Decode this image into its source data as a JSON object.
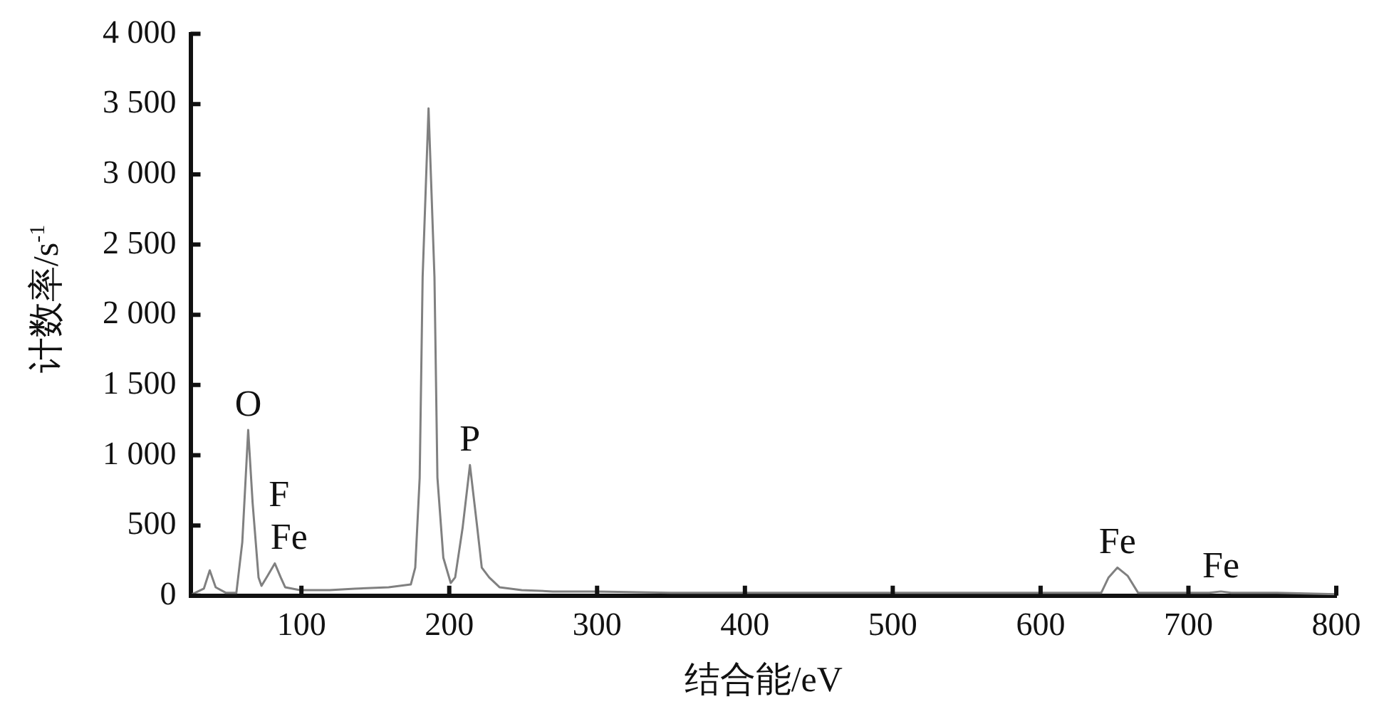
{
  "chart_data": {
    "type": "line",
    "xlabel": "结合能/eV",
    "ylabel": "计数率/s$^{-1}$",
    "x": [
      26,
      34,
      38,
      42,
      49,
      56,
      60,
      64,
      67,
      71,
      73,
      77,
      82,
      86,
      89,
      99,
      119,
      136,
      159,
      174,
      177,
      180,
      182,
      186,
      190,
      192,
      196,
      201,
      204,
      209,
      214,
      219,
      222,
      227,
      234,
      249,
      270,
      300,
      350,
      400,
      450,
      500,
      550,
      600,
      641,
      646,
      652,
      659,
      666,
      700,
      714,
      722,
      729,
      760,
      800
    ],
    "series": [
      {
        "color": "#808080",
        "values": [
          10,
          50,
          180,
          60,
          20,
          20,
          380,
          1180,
          660,
          130,
          70,
          140,
          230,
          130,
          60,
          40,
          40,
          50,
          60,
          80,
          200,
          840,
          2270,
          3470,
          2270,
          840,
          270,
          90,
          130,
          480,
          930,
          480,
          200,
          130,
          60,
          40,
          30,
          30,
          20,
          20,
          20,
          20,
          20,
          20,
          20,
          130,
          200,
          140,
          20,
          20,
          20,
          30,
          20,
          20,
          10
        ]
      }
    ],
    "xlim": [
      25,
      800
    ],
    "xticks": [
      100,
      200,
      300,
      400,
      500,
      600,
      700,
      800
    ],
    "ylim": [
      0,
      4000
    ],
    "yticks": [
      0,
      500,
      {
        "value": 1000,
        "label": "1 000"
      },
      {
        "value": 1500,
        "label": "1 500"
      },
      {
        "value": 2000,
        "label": "2 000"
      },
      {
        "value": 2500,
        "label": "2 500"
      },
      {
        "value": 3000,
        "label": "3 000"
      },
      {
        "value": 3500,
        "label": "3 500"
      },
      {
        "value": 4000,
        "label": "4 000"
      }
    ],
    "grid": false,
    "legend": false,
    "marker": "none",
    "line_style": "solid",
    "annotations": [
      {
        "text": "O",
        "x": 64,
        "y": 1180
      },
      {
        "text": "F",
        "x": 82,
        "y": 230
      },
      {
        "text": "Fe",
        "x": 82,
        "y": 230
      },
      {
        "text": "P",
        "x": 214,
        "y": 930
      },
      {
        "text": "Fe",
        "x": 652,
        "y": 200
      },
      {
        "text": "Fe",
        "x": 722,
        "y": 30
      }
    ]
  }
}
